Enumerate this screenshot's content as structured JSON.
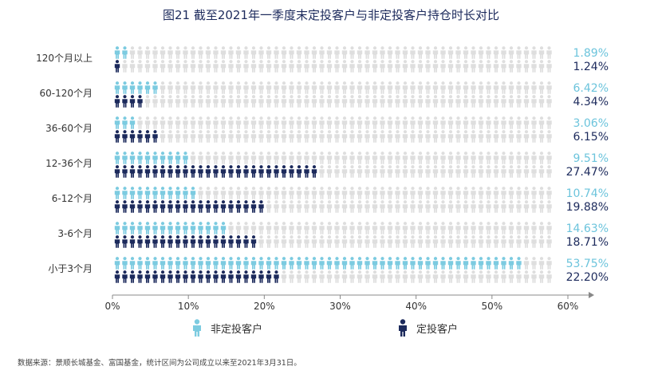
{
  "title": "图21   截至2021年一季度末定投客户与非定投客户持仓时长对比",
  "footnote": "数据来源：景顺长城基金、富国基金，统计区间为公司成立以来至2021年3月31日。",
  "colors": {
    "non_sip": "#7ccbe0",
    "sip": "#1c2a5c",
    "empty": "#dedede",
    "axis": "#888888"
  },
  "legend": {
    "non_sip_label": "非定投客户",
    "sip_label": "定投客户"
  },
  "chart_data": {
    "type": "bar",
    "title": "图21   截至2021年一季度末定投客户与非定投客户持仓时长对比",
    "categories": [
      "120个月以上",
      "60-120个月",
      "36-60个月",
      "12-36个月",
      "6-12个月",
      "3-6个月",
      "小于3个月"
    ],
    "series": [
      {
        "name": "非定投客户",
        "values": [
          1.89,
          6.42,
          3.06,
          9.51,
          10.74,
          14.63,
          53.75
        ],
        "labels": [
          "1.89%",
          "6.42%",
          "3.06%",
          "9.51%",
          "10.74%",
          "14.63%",
          "53.75%"
        ]
      },
      {
        "name": "定投客户",
        "values": [
          1.24,
          4.34,
          6.15,
          27.47,
          19.88,
          18.71,
          22.2
        ],
        "labels": [
          "1.24%",
          "4.34%",
          "6.15%",
          "27.47%",
          "19.88%",
          "18.71%",
          "22.20%"
        ]
      }
    ],
    "xlim": [
      0,
      60
    ],
    "xticks": [
      "0%",
      "10%",
      "20%",
      "30%",
      "40%",
      "50%",
      "60%"
    ],
    "orientation": "horizontal",
    "grid": false,
    "legend_position": "bottom"
  }
}
